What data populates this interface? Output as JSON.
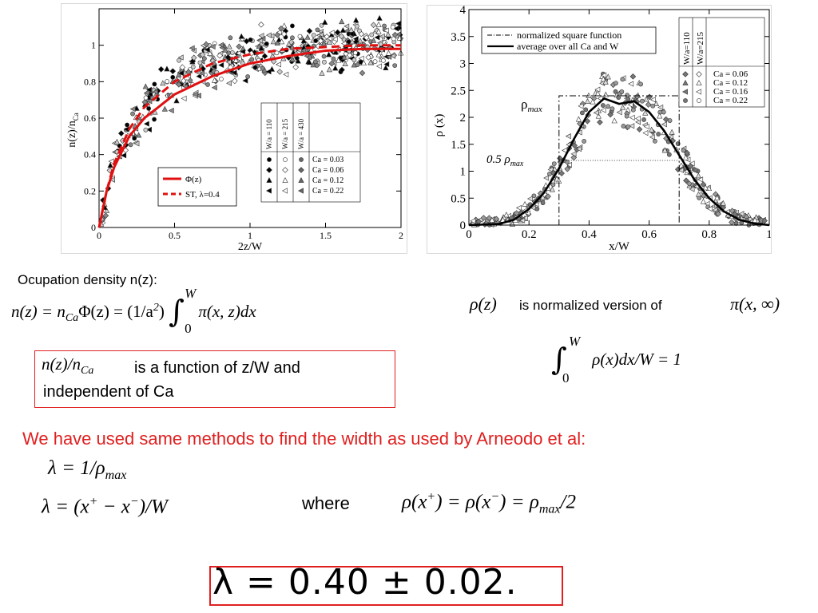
{
  "left_chart": {
    "ylabel": "n(z)/n",
    "ylabel_sub": "Ca",
    "xlabel": "2z/W",
    "xticks": [
      "0",
      "0.5",
      "1",
      "1.5",
      "2"
    ],
    "yticks": [
      "0",
      "0.2",
      "0.4",
      "0.6",
      "0.8",
      "1"
    ],
    "legend_lines": [
      {
        "label": "Φ(z)",
        "style": "solid",
        "color": "#e01010"
      },
      {
        "label": "ST, λ=0.4",
        "style": "dashed",
        "color": "#e01010"
      }
    ],
    "legend_headers": [
      "W/a = 110",
      "W/a = 215",
      "W/a = 430"
    ],
    "legend_ca": [
      "Ca = 0.03",
      "Ca = 0.06",
      "Ca = 0.12",
      "Ca = 0.22"
    ]
  },
  "right_chart": {
    "ylabel": "ρ (x)",
    "xlabel": "x/W",
    "xticks": [
      "0",
      "0.2",
      "0.4",
      "0.6",
      "0.8",
      "1"
    ],
    "yticks": [
      "0",
      "0.5",
      "1",
      "1.5",
      "2",
      "2.5",
      "3",
      "3.5",
      "4"
    ],
    "legend_lines": [
      {
        "label": "normalized square function",
        "style": "dashdot"
      },
      {
        "label": "average over all Ca and W",
        "style": "solid"
      }
    ],
    "legend_headers": [
      "W/a=110",
      "W/a=215"
    ],
    "legend_ca": [
      "Ca = 0.06",
      "Ca = 0.12",
      "Ca = 0.16",
      "Ca = 0.22"
    ],
    "rho_max_label": "ρ",
    "rho_max_sub": "max",
    "half_rho_label": "0.5 ρ",
    "half_rho_sub": "max"
  },
  "chart_data": [
    {
      "type": "scatter",
      "xlabel": "2z/W",
      "ylabel": "n(z)/nCa",
      "xlim": [
        0,
        2
      ],
      "ylim": [
        0,
        1.2
      ],
      "series": [
        {
          "name": "Φ(z)",
          "x": [
            0,
            0.05,
            0.1,
            0.2,
            0.3,
            0.5,
            0.75,
            1.0,
            1.25,
            1.5,
            1.75,
            2.0
          ],
          "values": [
            0,
            0.2,
            0.33,
            0.5,
            0.6,
            0.73,
            0.83,
            0.9,
            0.94,
            0.97,
            0.98,
            0.98
          ]
        },
        {
          "name": "ST, λ=0.4",
          "x": [
            0,
            0.05,
            0.1,
            0.2,
            0.3,
            0.5,
            0.75,
            1.0,
            1.25,
            1.5,
            1.75,
            2.0
          ],
          "values": [
            0,
            0.2,
            0.35,
            0.54,
            0.66,
            0.8,
            0.9,
            0.95,
            0.98,
            0.99,
            1.0,
            1.0
          ]
        }
      ]
    },
    {
      "type": "scatter",
      "xlabel": "x/W",
      "ylabel": "ρ (x)",
      "xlim": [
        0,
        1
      ],
      "ylim": [
        0,
        4
      ],
      "series": [
        {
          "name": "normalized square function",
          "x": [
            0,
            0.3,
            0.3,
            0.7,
            0.7,
            1.0
          ],
          "values": [
            0,
            0,
            2.4,
            2.4,
            0,
            0
          ]
        },
        {
          "name": "average over all Ca and W",
          "x": [
            0,
            0.1,
            0.15,
            0.2,
            0.25,
            0.3,
            0.35,
            0.4,
            0.45,
            0.5,
            0.55,
            0.6,
            0.65,
            0.7,
            0.75,
            0.8,
            0.85,
            0.9,
            0.95,
            1.0
          ],
          "values": [
            0,
            0.02,
            0.1,
            0.3,
            0.6,
            1.05,
            1.6,
            2.1,
            2.35,
            2.25,
            2.3,
            2.1,
            1.75,
            1.3,
            0.85,
            0.5,
            0.25,
            0.1,
            0.03,
            0
          ]
        }
      ]
    }
  ],
  "text": {
    "occupation_label": "Ocupation density n(z):",
    "boxed_text_1": "is  a  function  of  z/W  and",
    "boxed_text_2": "independent  of Ca",
    "normalized_text": "is  normalized  version of",
    "red_sentence": "We have  used same  methods  to find  the  width as  used by Arneodo et al:",
    "where": "where"
  },
  "equations": {
    "n_of_z": "n(z) = n",
    "n_of_z_sub": "Ca",
    "n_of_z_2": "Φ(z) = (1/a",
    "n_of_z_3": ") ",
    "integrand": "π(x, z)dx",
    "int_upper": "W",
    "int_lower": "0",
    "ratio": "n(z)/n",
    "ratio_sub": "Ca",
    "rho_z": "ρ(z)",
    "pi_inf": "π(x, ∞)",
    "norm_integrand": "ρ(x)dx/W = 1",
    "lambda1": "λ = 1/ρ",
    "lambda1_sub": "max",
    "lambda2": "λ = (x",
    "lambda2_b": " − x",
    "lambda2_c": ")/W",
    "rho_eq": "ρ(x",
    "rho_eq_b": ") = ρ(x",
    "rho_eq_c": ") = ρ",
    "rho_eq_sub": "max",
    "rho_eq_d": "/2",
    "final": "λ = 0.40 ± 0.02."
  }
}
